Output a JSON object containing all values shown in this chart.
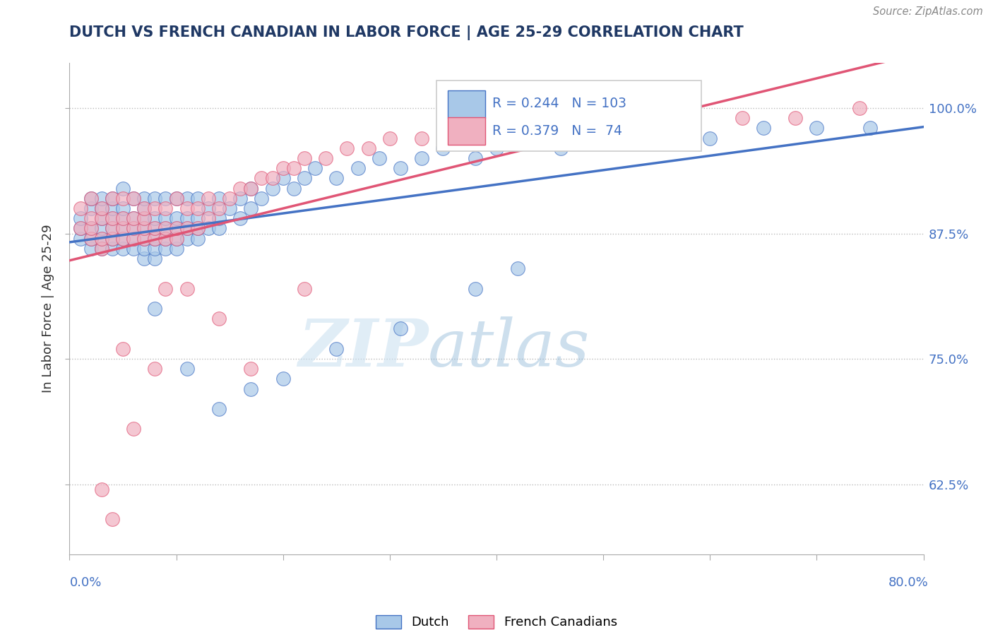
{
  "title": "DUTCH VS FRENCH CANADIAN IN LABOR FORCE | AGE 25-29 CORRELATION CHART",
  "source": "Source: ZipAtlas.com",
  "ylabel": "In Labor Force | Age 25-29",
  "ytick_labels": [
    "62.5%",
    "75.0%",
    "87.5%",
    "100.0%"
  ],
  "ytick_values": [
    0.625,
    0.75,
    0.875,
    1.0
  ],
  "xmin": 0.0,
  "xmax": 0.8,
  "ymin": 0.555,
  "ymax": 1.045,
  "dutch_color": "#a8c8e8",
  "french_color": "#f0b0c0",
  "dutch_line_color": "#4472c4",
  "french_line_color": "#e05575",
  "dutch_R": 0.244,
  "dutch_N": 103,
  "french_R": 0.379,
  "french_N": 74,
  "watermark_zip": "ZIP",
  "watermark_atlas": "atlas",
  "title_color": "#1f3864",
  "axis_label_color": "#4472c4",
  "dutch_x": [
    0.01,
    0.01,
    0.01,
    0.02,
    0.02,
    0.02,
    0.02,
    0.02,
    0.03,
    0.03,
    0.03,
    0.03,
    0.03,
    0.03,
    0.04,
    0.04,
    0.04,
    0.04,
    0.04,
    0.04,
    0.05,
    0.05,
    0.05,
    0.05,
    0.05,
    0.05,
    0.06,
    0.06,
    0.06,
    0.06,
    0.06,
    0.07,
    0.07,
    0.07,
    0.07,
    0.07,
    0.07,
    0.07,
    0.08,
    0.08,
    0.08,
    0.08,
    0.08,
    0.08,
    0.09,
    0.09,
    0.09,
    0.09,
    0.09,
    0.1,
    0.1,
    0.1,
    0.1,
    0.1,
    0.11,
    0.11,
    0.11,
    0.11,
    0.12,
    0.12,
    0.12,
    0.12,
    0.13,
    0.13,
    0.14,
    0.14,
    0.14,
    0.15,
    0.16,
    0.16,
    0.17,
    0.17,
    0.18,
    0.19,
    0.2,
    0.21,
    0.22,
    0.23,
    0.25,
    0.27,
    0.29,
    0.31,
    0.33,
    0.35,
    0.38,
    0.4,
    0.43,
    0.46,
    0.5,
    0.55,
    0.6,
    0.65,
    0.7,
    0.75,
    0.38,
    0.42,
    0.31,
    0.25,
    0.2,
    0.17,
    0.14,
    0.11,
    0.08
  ],
  "dutch_y": [
    0.87,
    0.88,
    0.89,
    0.86,
    0.87,
    0.88,
    0.9,
    0.91,
    0.86,
    0.87,
    0.88,
    0.89,
    0.9,
    0.91,
    0.86,
    0.87,
    0.88,
    0.89,
    0.9,
    0.91,
    0.86,
    0.87,
    0.88,
    0.89,
    0.9,
    0.92,
    0.86,
    0.87,
    0.88,
    0.89,
    0.91,
    0.85,
    0.86,
    0.87,
    0.88,
    0.89,
    0.9,
    0.91,
    0.85,
    0.86,
    0.87,
    0.88,
    0.89,
    0.91,
    0.86,
    0.87,
    0.88,
    0.89,
    0.91,
    0.86,
    0.87,
    0.88,
    0.89,
    0.91,
    0.87,
    0.88,
    0.89,
    0.91,
    0.87,
    0.88,
    0.89,
    0.91,
    0.88,
    0.9,
    0.88,
    0.89,
    0.91,
    0.9,
    0.91,
    0.89,
    0.9,
    0.92,
    0.91,
    0.92,
    0.93,
    0.92,
    0.93,
    0.94,
    0.93,
    0.94,
    0.95,
    0.94,
    0.95,
    0.96,
    0.95,
    0.96,
    0.97,
    0.96,
    0.97,
    0.97,
    0.97,
    0.98,
    0.98,
    0.98,
    0.82,
    0.84,
    0.78,
    0.76,
    0.73,
    0.72,
    0.7,
    0.74,
    0.8
  ],
  "french_x": [
    0.01,
    0.01,
    0.02,
    0.02,
    0.02,
    0.02,
    0.03,
    0.03,
    0.03,
    0.03,
    0.04,
    0.04,
    0.04,
    0.04,
    0.05,
    0.05,
    0.05,
    0.05,
    0.06,
    0.06,
    0.06,
    0.06,
    0.07,
    0.07,
    0.07,
    0.07,
    0.08,
    0.08,
    0.08,
    0.09,
    0.09,
    0.09,
    0.1,
    0.1,
    0.1,
    0.11,
    0.11,
    0.12,
    0.12,
    0.13,
    0.13,
    0.14,
    0.15,
    0.16,
    0.17,
    0.18,
    0.19,
    0.2,
    0.21,
    0.22,
    0.24,
    0.26,
    0.28,
    0.3,
    0.33,
    0.36,
    0.4,
    0.44,
    0.48,
    0.53,
    0.58,
    0.63,
    0.68,
    0.74,
    0.22,
    0.17,
    0.14,
    0.11,
    0.09,
    0.08,
    0.06,
    0.05,
    0.04,
    0.03
  ],
  "french_y": [
    0.88,
    0.9,
    0.87,
    0.88,
    0.89,
    0.91,
    0.86,
    0.87,
    0.89,
    0.9,
    0.87,
    0.88,
    0.89,
    0.91,
    0.87,
    0.88,
    0.89,
    0.91,
    0.87,
    0.88,
    0.89,
    0.91,
    0.87,
    0.88,
    0.89,
    0.9,
    0.87,
    0.88,
    0.9,
    0.87,
    0.88,
    0.9,
    0.87,
    0.88,
    0.91,
    0.88,
    0.9,
    0.88,
    0.9,
    0.89,
    0.91,
    0.9,
    0.91,
    0.92,
    0.92,
    0.93,
    0.93,
    0.94,
    0.94,
    0.95,
    0.95,
    0.96,
    0.96,
    0.97,
    0.97,
    0.97,
    0.97,
    0.98,
    0.98,
    0.98,
    0.99,
    0.99,
    0.99,
    1.0,
    0.82,
    0.74,
    0.79,
    0.82,
    0.82,
    0.74,
    0.68,
    0.76,
    0.59,
    0.62
  ]
}
